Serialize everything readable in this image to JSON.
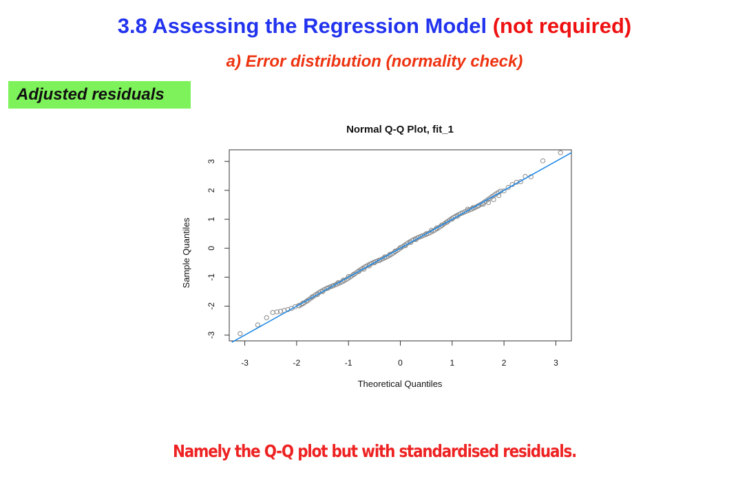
{
  "slide": {
    "title_main": "3.8 Assessing the Regression Model",
    "title_note": "(not required)",
    "subtitle": "a) Error distribution (normality check)",
    "badge": "Adjusted residuals",
    "caption": "Namely the Q-Q plot but with standardised residuals."
  },
  "colors": {
    "title_blue": "#2233ee",
    "accent_red": "#ee1111",
    "badge_green": "#7df25a",
    "line_blue": "#1e88e5",
    "point_gray": "#888888"
  },
  "chart_data": {
    "type": "scatter",
    "title": "Normal Q-Q Plot, fit_1",
    "xlabel": "Theoretical Quantiles",
    "ylabel": "Sample Quantiles",
    "xlim": [
      -3.3,
      3.3
    ],
    "ylim": [
      -3.2,
      3.4
    ],
    "xticks": [
      -3,
      -2,
      -1,
      0,
      1,
      2,
      3
    ],
    "yticks": [
      -3,
      -2,
      -1,
      0,
      1,
      2,
      3
    ],
    "grid": false,
    "reference_line": {
      "intercept": 0.0,
      "slope": 1.0
    },
    "series": [
      {
        "points": {
          "x": [
            -3.09,
            -2.75,
            -2.58,
            -2.46,
            -2.38,
            -2.31,
            -2.24,
            -2.17,
            -2.1,
            -2.03,
            -1.96,
            -1.88,
            -1.8,
            -1.7,
            -1.6,
            -1.5,
            -1.4,
            -1.3,
            -1.2,
            -1.1,
            -1.0,
            -0.9,
            -0.8,
            -0.7,
            -0.6,
            -0.5,
            -0.4,
            -0.3,
            -0.2,
            -0.1,
            0.0,
            0.1,
            0.2,
            0.3,
            0.4,
            0.5,
            0.6,
            0.7,
            0.8,
            0.9,
            1.0,
            1.1,
            1.2,
            1.3,
            1.4,
            1.5,
            1.6,
            1.7,
            1.8,
            1.9,
            2.0,
            2.08,
            2.16,
            2.24,
            2.32,
            2.41,
            2.52,
            2.75,
            3.09
          ],
          "y": [
            -2.95,
            -2.65,
            -2.4,
            -2.22,
            -2.2,
            -2.18,
            -2.15,
            -2.12,
            -2.08,
            -2.02,
            -1.98,
            -1.9,
            -1.82,
            -1.68,
            -1.6,
            -1.5,
            -1.38,
            -1.3,
            -1.19,
            -1.1,
            -0.98,
            -0.9,
            -0.8,
            -0.72,
            -0.61,
            -0.5,
            -0.42,
            -0.3,
            -0.21,
            -0.1,
            0.02,
            0.09,
            0.2,
            0.3,
            0.41,
            0.5,
            0.62,
            0.7,
            0.8,
            0.9,
            1.01,
            1.1,
            1.22,
            1.35,
            1.4,
            1.46,
            1.52,
            1.58,
            1.68,
            1.82,
            1.98,
            2.1,
            2.2,
            2.28,
            2.3,
            2.48,
            2.47,
            3.02,
            3.3
          ]
        }
      }
    ]
  }
}
